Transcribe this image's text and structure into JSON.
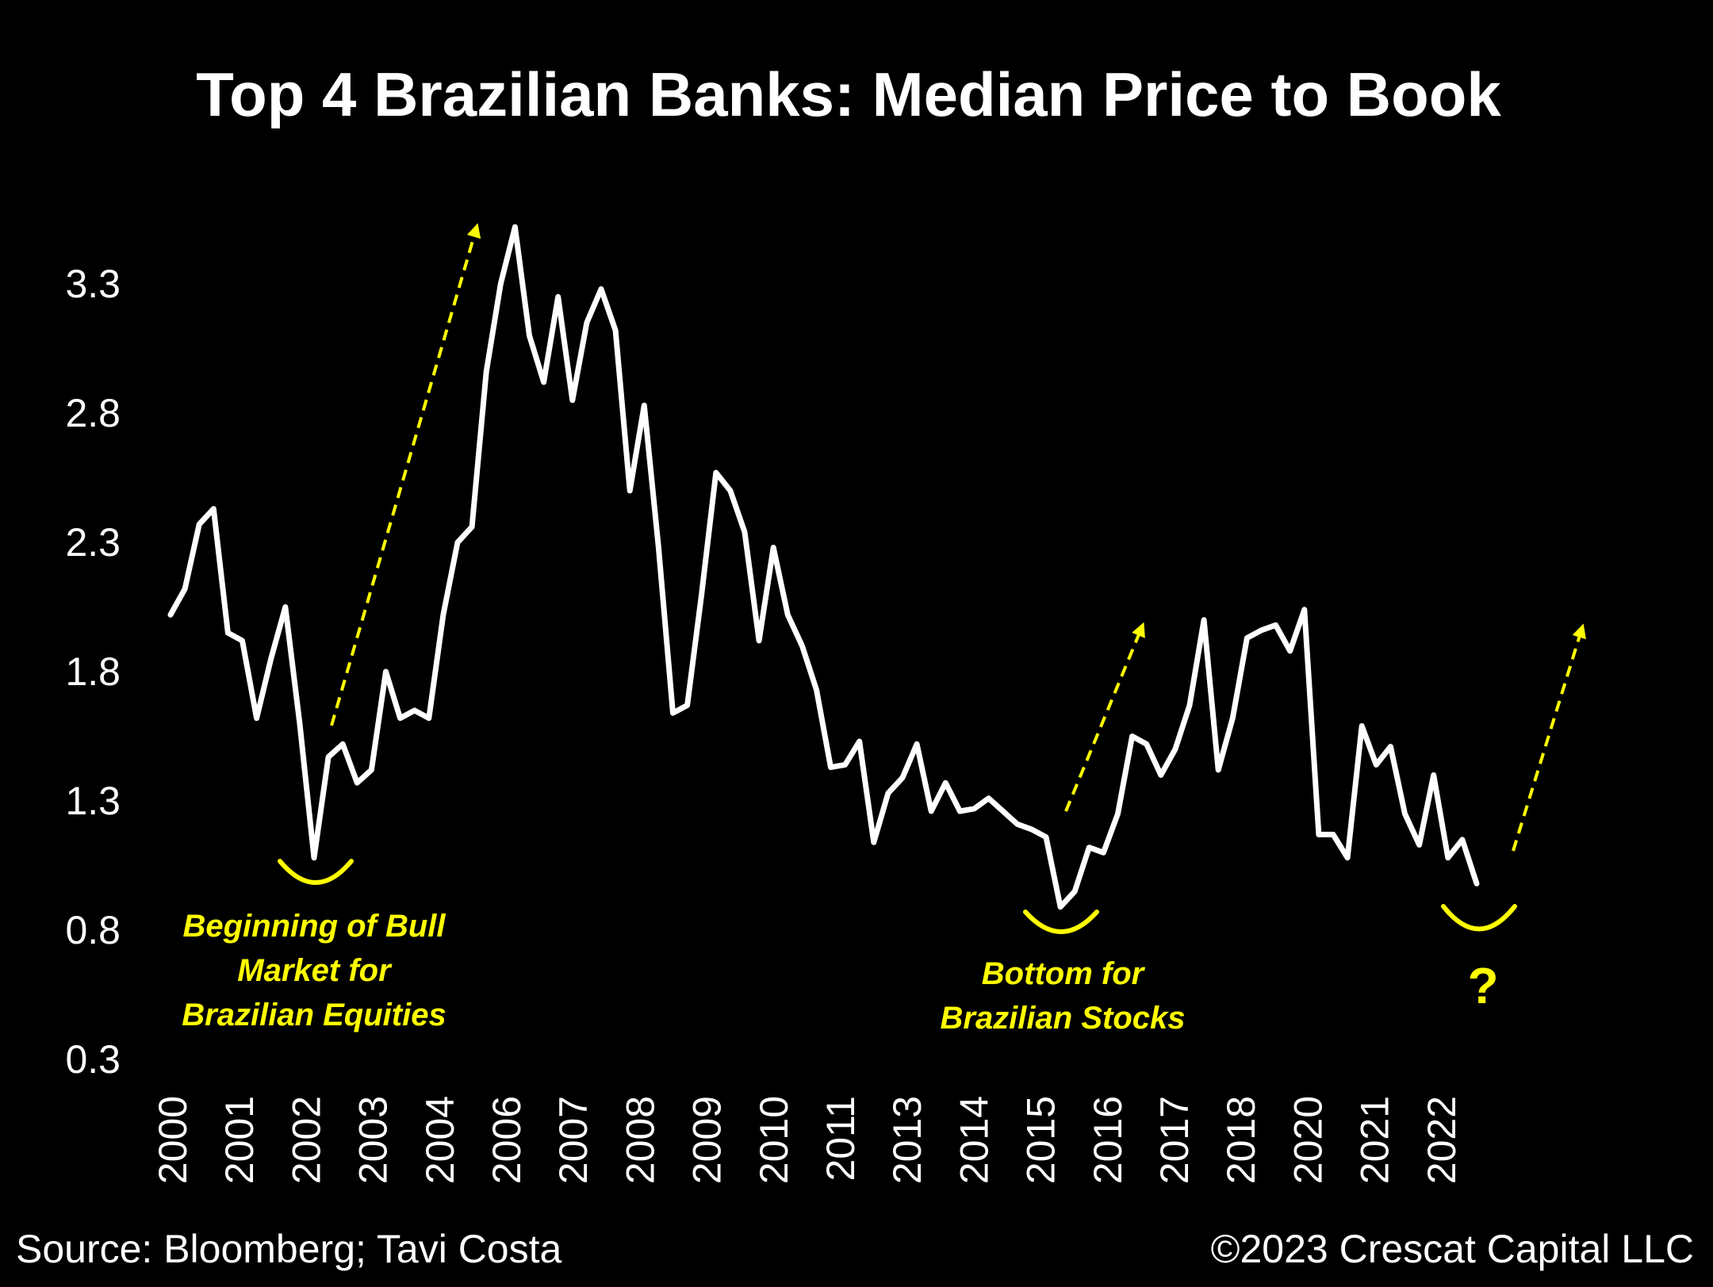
{
  "chart_data": {
    "type": "line",
    "title": "Top 4 Brazilian Banks: Median Price to Book",
    "xlabel": "",
    "ylabel": "",
    "ylim": [
      0.3,
      3.55
    ],
    "y_ticks": [
      "3.3",
      "2.8",
      "2.3",
      "1.8",
      "1.3",
      "0.8",
      "0.3"
    ],
    "x_tick_labels": [
      "2000",
      "2001",
      "2002",
      "2003",
      "2004",
      "2006",
      "2007",
      "2008",
      "2009",
      "2010",
      "2011",
      "2013",
      "2014",
      "2015",
      "2016",
      "2017",
      "2018",
      "2020",
      "2021",
      "2022"
    ],
    "grid": false,
    "line_color": "#ffffff",
    "annotation_color": "#ffff00",
    "background": "#000000",
    "series": [
      {
        "values": [
          2.02,
          2.12,
          2.37,
          2.43,
          1.95,
          1.92,
          1.62,
          1.85,
          2.05,
          1.6,
          1.08,
          1.47,
          1.52,
          1.37,
          1.42,
          1.8,
          1.62,
          1.65,
          1.62,
          2.02,
          2.3,
          2.36,
          2.96,
          3.3,
          3.52,
          3.1,
          2.92,
          3.25,
          2.85,
          3.15,
          3.28,
          3.12,
          2.5,
          2.83,
          2.28,
          1.64,
          1.67,
          2.1,
          2.57,
          2.5,
          2.34,
          1.92,
          2.28,
          2.02,
          1.9,
          1.73,
          1.43,
          1.44,
          1.53,
          1.14,
          1.33,
          1.39,
          1.52,
          1.26,
          1.37,
          1.26,
          1.27,
          1.31,
          1.26,
          1.21,
          1.19,
          1.16,
          0.89,
          0.95,
          1.12,
          1.1,
          1.25,
          1.55,
          1.52,
          1.4,
          1.5,
          1.67,
          2.0,
          1.42,
          1.62,
          1.93,
          1.96,
          1.98,
          1.88,
          2.04,
          1.17,
          1.17,
          1.08,
          1.59,
          1.44,
          1.51,
          1.25,
          1.13,
          1.4,
          1.08,
          1.15,
          0.98
        ]
      }
    ],
    "annotations": [
      {
        "lines": [
          "Beginning of  Bull",
          "Market for",
          "Brazilian Equities"
        ]
      },
      {
        "lines": [
          "Bottom for",
          "Brazilian Stocks"
        ]
      },
      {
        "text": "?"
      }
    ]
  },
  "footer": {
    "source": "Source: Bloomberg; Tavi Costa",
    "copyright": "©2023 Crescat Capital LLC"
  }
}
